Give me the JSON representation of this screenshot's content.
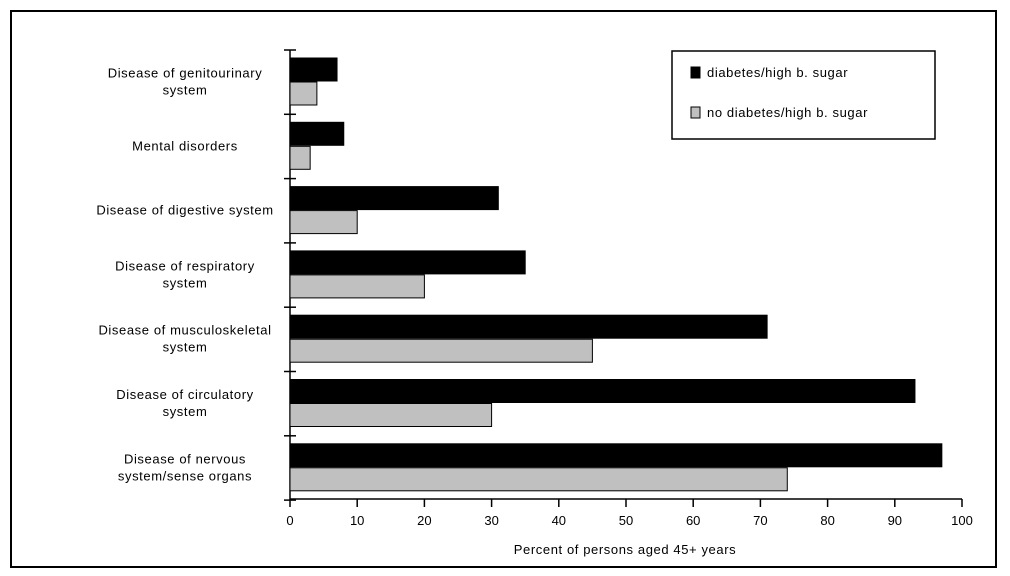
{
  "chart_data": {
    "type": "bar",
    "orientation": "horizontal",
    "categories": [
      [
        "Disease of genitourinary",
        "system"
      ],
      [
        "Mental disorders"
      ],
      [
        "Disease of digestive system"
      ],
      [
        "Disease of respiratory",
        "system"
      ],
      [
        "Disease of musculoskeletal",
        "system"
      ],
      [
        "Disease of circulatory",
        "system"
      ],
      [
        "Disease of nervous",
        "system/sense organs"
      ]
    ],
    "series": [
      {
        "name": "diabetes/high b. sugar",
        "color": "#000000",
        "values": [
          7,
          8,
          31,
          35,
          71,
          93,
          97
        ]
      },
      {
        "name": "no diabetes/high b. sugar",
        "color": "#c0c0c0",
        "values": [
          4,
          3,
          10,
          20,
          45,
          30,
          74
        ]
      }
    ],
    "xlabel": "Percent of persons aged 45+ years",
    "xlim": [
      0,
      100
    ],
    "xticks": [
      0,
      10,
      20,
      30,
      40,
      50,
      60,
      70,
      80,
      90,
      100
    ],
    "legend_position": "top-right",
    "grid": false
  }
}
